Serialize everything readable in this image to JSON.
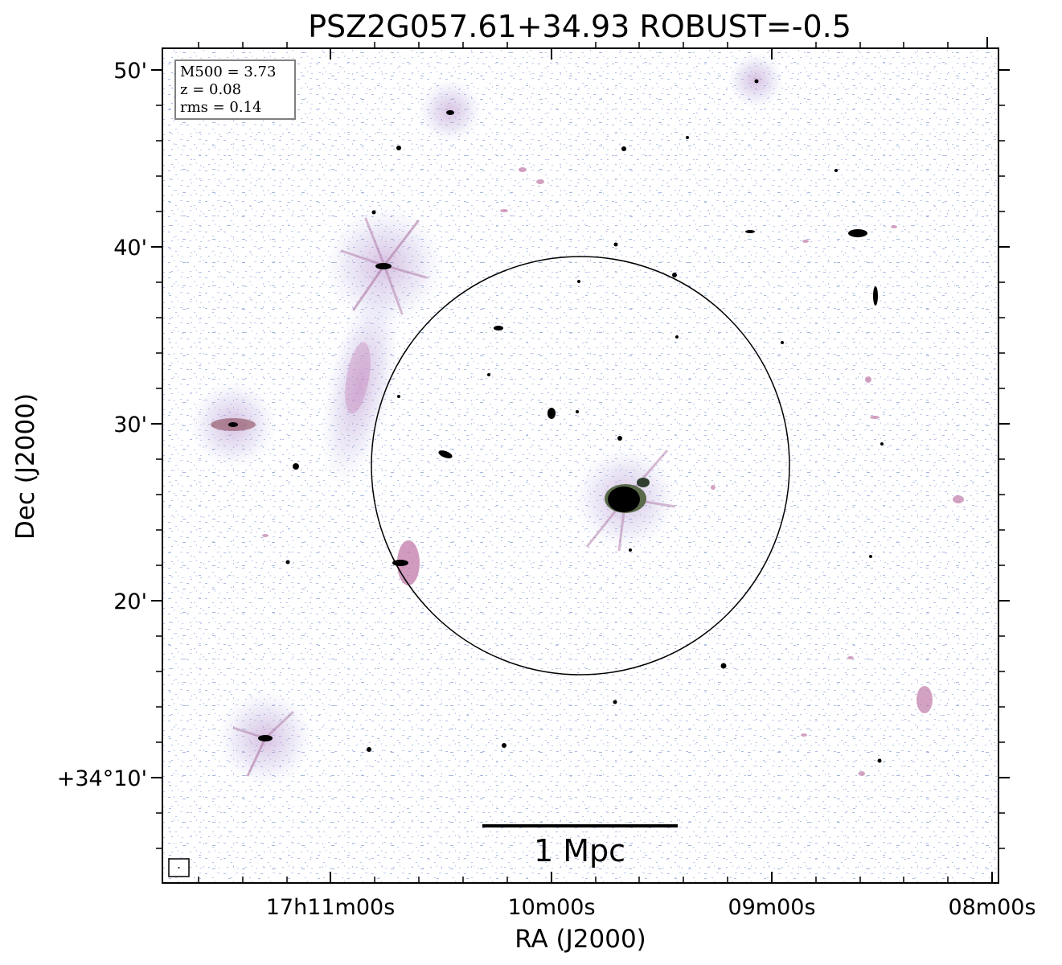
{
  "title": "PSZ2G057.61+34.93 ROBUST=-0.5",
  "axes": {
    "xlabel": "RA (J2000)",
    "ylabel": "Dec (J2000)",
    "x_ticks": [
      "17h11m00s",
      "10m00s",
      "09m00s",
      "08m00s"
    ],
    "y_ticks": [
      "50'",
      "40'",
      "30'",
      "20'",
      "+34°10'"
    ]
  },
  "info": {
    "m500": "M500 = 3.73",
    "z": "z = 0.08",
    "rms": "rms = 0.14"
  },
  "scalebar": {
    "label": "1 Mpc"
  },
  "colors": {
    "noise": "#8fa6d8",
    "emission_mid": "#c98cc0",
    "emission_strong": "#8a4a5a",
    "core": "#000000"
  }
}
